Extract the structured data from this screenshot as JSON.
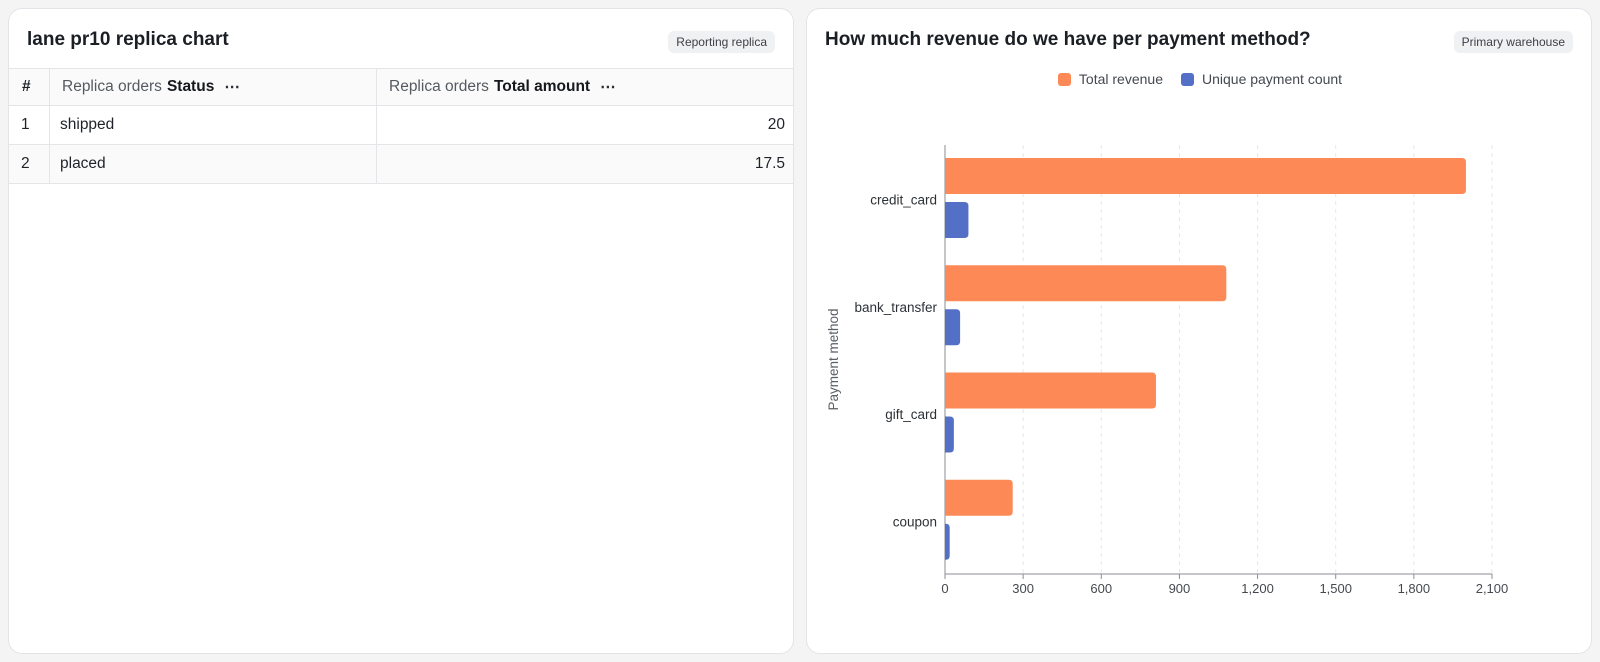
{
  "left_card": {
    "title": "lane pr10 replica chart",
    "badge": "Reporting replica",
    "table": {
      "index_header": "#",
      "columns": [
        {
          "prefix": "Replica orders",
          "field": "Status",
          "menu": "⋯"
        },
        {
          "prefix": "Replica orders",
          "field": "Total amount",
          "menu": "⋯"
        }
      ],
      "rows": [
        {
          "index": "1",
          "status": "shipped",
          "amount": "20"
        },
        {
          "index": "2",
          "status": "placed",
          "amount": "17.5"
        }
      ]
    }
  },
  "right_card": {
    "title": "How much revenue do we have per payment method?",
    "badge": "Primary warehouse"
  },
  "chart_data": {
    "type": "bar",
    "orientation": "horizontal",
    "title": "How much revenue do we have per payment method?",
    "ylabel": "Payment method",
    "xlabel": "",
    "categories": [
      "credit_card",
      "bank_transfer",
      "gift_card",
      "coupon"
    ],
    "series": [
      {
        "name": "Total revenue",
        "color": "#fd8a56",
        "values": [
          2000,
          1080,
          810,
          260
        ]
      },
      {
        "name": "Unique payment count",
        "color": "#5470c6",
        "values": [
          90,
          58,
          34,
          18
        ]
      }
    ],
    "xlim": [
      0,
      2100
    ],
    "xticks": [
      "0",
      "300",
      "600",
      "900",
      "1,200",
      "1,500",
      "1,800",
      "2,100"
    ],
    "xtick_values": [
      0,
      300,
      600,
      900,
      1200,
      1500,
      1800,
      2100
    ],
    "grid": true,
    "legend_position": "top-center"
  }
}
